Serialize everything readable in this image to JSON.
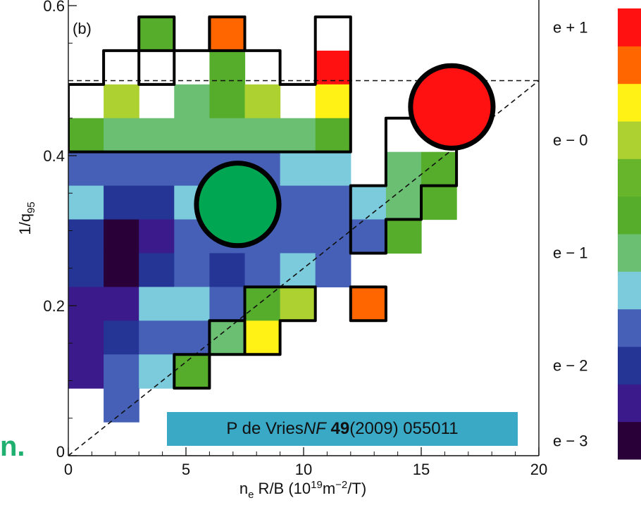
{
  "colors": {
    "citation_bg": "#3aa9c6",
    "green_marker": "#00a651",
    "red_marker": "#ff1111",
    "fragment_text": "#1fb070"
  },
  "chart_data": {
    "type": "heatmap",
    "panel_label": "(b)",
    "xlabel": {
      "base": "n",
      "sub": "e",
      "rest": " R/B (10",
      "sup1": "19",
      "mid": "m",
      "sup2": "−2",
      "end": "/T)"
    },
    "ylabel": {
      "base": "1/q",
      "sub": "95"
    },
    "xlim": [
      0,
      20
    ],
    "ylim": [
      0,
      0.6
    ],
    "x_ticks": [
      {
        "value": 0,
        "label": "0"
      },
      {
        "value": 5,
        "label": "5"
      },
      {
        "value": 10,
        "label": "10"
      },
      {
        "value": 15,
        "label": "15"
      },
      {
        "value": 20,
        "label": "20"
      }
    ],
    "y_ticks": [
      {
        "value": 0,
        "label": "0"
      },
      {
        "value": 0.2,
        "label": "0.2"
      },
      {
        "value": 0.4,
        "label": "0.4"
      },
      {
        "value": 0.6,
        "label": "0.6"
      }
    ],
    "cell_size": {
      "dx": 1.5,
      "dy": 0.045
    },
    "palette": [
      "#2a0038",
      "#3b1a8c",
      "#253596",
      "#4560b6",
      "#7ccbdc",
      "#6abf72",
      "#55ad2b",
      "#67b52a",
      "#aed132",
      "#fff214",
      "#ff6600",
      "#ff1111"
    ],
    "colorbar_labels": [
      {
        "label": "e + 1",
        "level": 11.5
      },
      {
        "label": "e − 0",
        "level": 8.5
      },
      {
        "label": "e − 1",
        "level": 5.5
      },
      {
        "label": "e − 2",
        "level": 2.5
      },
      {
        "label": "e − 3",
        "level": 0.5
      }
    ],
    "cells": [
      [
        3.0,
        0.54,
        6
      ],
      [
        6.0,
        0.54,
        10
      ],
      [
        10.5,
        0.495,
        11
      ],
      [
        6.0,
        0.495,
        6
      ],
      [
        1.5,
        0.45,
        8
      ],
      [
        4.5,
        0.45,
        5
      ],
      [
        6.0,
        0.45,
        6
      ],
      [
        7.5,
        0.45,
        8
      ],
      [
        10.5,
        0.45,
        9
      ],
      [
        0.0,
        0.405,
        6
      ],
      [
        1.5,
        0.405,
        5
      ],
      [
        3.0,
        0.405,
        5
      ],
      [
        4.5,
        0.405,
        5
      ],
      [
        6.0,
        0.405,
        5
      ],
      [
        7.5,
        0.405,
        5
      ],
      [
        9.0,
        0.405,
        5
      ],
      [
        10.5,
        0.405,
        6
      ],
      [
        0.0,
        0.36,
        3
      ],
      [
        1.5,
        0.36,
        3
      ],
      [
        3.0,
        0.36,
        3
      ],
      [
        4.5,
        0.36,
        3
      ],
      [
        6.0,
        0.36,
        3
      ],
      [
        7.5,
        0.36,
        3
      ],
      [
        9.0,
        0.36,
        4
      ],
      [
        10.5,
        0.36,
        4
      ],
      [
        13.5,
        0.36,
        5
      ],
      [
        15.0,
        0.36,
        6
      ],
      [
        0.0,
        0.315,
        4
      ],
      [
        1.5,
        0.315,
        2
      ],
      [
        3.0,
        0.315,
        2
      ],
      [
        4.5,
        0.315,
        4
      ],
      [
        6.0,
        0.315,
        3
      ],
      [
        7.5,
        0.315,
        3
      ],
      [
        9.0,
        0.315,
        3
      ],
      [
        10.5,
        0.315,
        3
      ],
      [
        12.0,
        0.315,
        4
      ],
      [
        13.5,
        0.315,
        5
      ],
      [
        15.0,
        0.315,
        6
      ],
      [
        0.0,
        0.27,
        2
      ],
      [
        1.5,
        0.27,
        0
      ],
      [
        3.0,
        0.27,
        1
      ],
      [
        4.5,
        0.27,
        3
      ],
      [
        6.0,
        0.27,
        3
      ],
      [
        7.5,
        0.27,
        3
      ],
      [
        9.0,
        0.27,
        3
      ],
      [
        10.5,
        0.27,
        3
      ],
      [
        12.0,
        0.27,
        3
      ],
      [
        13.5,
        0.27,
        6
      ],
      [
        0.0,
        0.225,
        2
      ],
      [
        1.5,
        0.225,
        0
      ],
      [
        3.0,
        0.225,
        2
      ],
      [
        4.5,
        0.225,
        3
      ],
      [
        6.0,
        0.225,
        2
      ],
      [
        7.5,
        0.225,
        3
      ],
      [
        9.0,
        0.225,
        4
      ],
      [
        10.5,
        0.225,
        3
      ],
      [
        0.0,
        0.18,
        1
      ],
      [
        1.5,
        0.18,
        1
      ],
      [
        3.0,
        0.18,
        4
      ],
      [
        4.5,
        0.18,
        4
      ],
      [
        6.0,
        0.18,
        3
      ],
      [
        7.5,
        0.18,
        6
      ],
      [
        9.0,
        0.18,
        8
      ],
      [
        12.0,
        0.18,
        10
      ],
      [
        0.0,
        0.135,
        1
      ],
      [
        1.5,
        0.135,
        2
      ],
      [
        3.0,
        0.135,
        3
      ],
      [
        4.5,
        0.135,
        3
      ],
      [
        6.0,
        0.135,
        5
      ],
      [
        7.5,
        0.135,
        9
      ],
      [
        0.0,
        0.09,
        1
      ],
      [
        1.5,
        0.09,
        3
      ],
      [
        3.0,
        0.09,
        4
      ],
      [
        4.5,
        0.09,
        6
      ],
      [
        1.5,
        0.045,
        3
      ]
    ],
    "outlined_regions": [
      [
        [
          3.0,
          0.585
        ],
        [
          4.5,
          0.585
        ],
        [
          4.5,
          0.54
        ],
        [
          3.0,
          0.54
        ]
      ],
      [
        [
          6.0,
          0.585
        ],
        [
          7.5,
          0.585
        ],
        [
          7.5,
          0.54
        ],
        [
          6.0,
          0.54
        ]
      ],
      [
        [
          0.0,
          0.405
        ],
        [
          0.0,
          0.495
        ],
        [
          1.5,
          0.495
        ],
        [
          1.5,
          0.54
        ],
        [
          3.0,
          0.54
        ],
        [
          3.0,
          0.495
        ],
        [
          4.5,
          0.495
        ],
        [
          4.5,
          0.54
        ],
        [
          6.0,
          0.54
        ],
        [
          6.0,
          0.585
        ],
        [
          7.5,
          0.585
        ],
        [
          7.5,
          0.54
        ],
        [
          9.0,
          0.54
        ],
        [
          9.0,
          0.495
        ],
        [
          10.5,
          0.495
        ],
        [
          10.5,
          0.585
        ],
        [
          12.0,
          0.585
        ],
        [
          12.0,
          0.405
        ]
      ],
      [
        [
          13.5,
          0.45
        ],
        [
          16.5,
          0.45
        ],
        [
          16.5,
          0.36
        ],
        [
          15.0,
          0.36
        ],
        [
          15.0,
          0.315
        ],
        [
          13.5,
          0.315
        ],
        [
          13.5,
          0.27
        ],
        [
          12.0,
          0.27
        ],
        [
          12.0,
          0.36
        ],
        [
          13.5,
          0.36
        ]
      ],
      [
        [
          7.5,
          0.225
        ],
        [
          10.5,
          0.225
        ],
        [
          10.5,
          0.18
        ],
        [
          9.0,
          0.18
        ],
        [
          9.0,
          0.135
        ],
        [
          7.5,
          0.135
        ],
        [
          7.5,
          0.18
        ],
        [
          6.0,
          0.18
        ],
        [
          6.0,
          0.135
        ],
        [
          4.5,
          0.135
        ],
        [
          4.5,
          0.09
        ],
        [
          6.0,
          0.09
        ],
        [
          6.0,
          0.135
        ],
        [
          7.5,
          0.135
        ]
      ],
      [
        [
          12.0,
          0.225
        ],
        [
          13.5,
          0.225
        ],
        [
          13.5,
          0.18
        ],
        [
          12.0,
          0.18
        ]
      ]
    ],
    "dashed_lines": [
      {
        "from": [
          0,
          0.5
        ],
        "to": [
          20,
          0.5
        ]
      },
      {
        "from": [
          0,
          0
        ],
        "to": [
          20,
          0.5
        ]
      }
    ],
    "markers": [
      {
        "x": 7.2,
        "y": 0.335,
        "color": "#00a651",
        "r": 0.055
      },
      {
        "x": 16.3,
        "y": 0.465,
        "color": "#ff1111",
        "r": 0.055
      }
    ]
  },
  "citation": {
    "author": "P de Vries ",
    "journal": "NF",
    "volume": "49",
    "rest": " (2009) 055011"
  },
  "fragment_text": "n."
}
